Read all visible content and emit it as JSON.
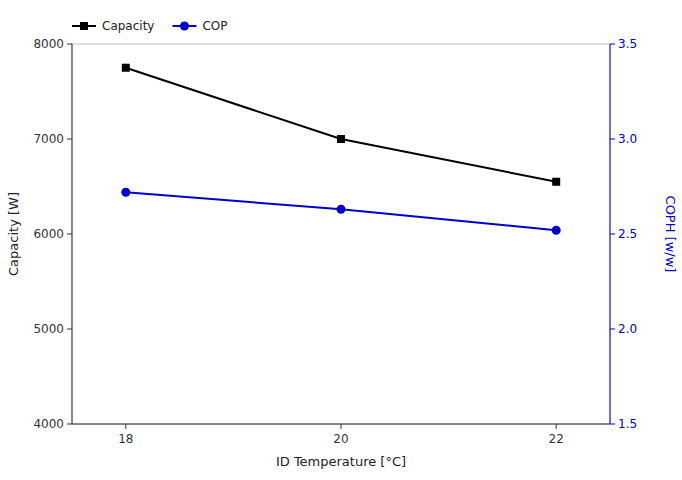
{
  "chart_data": {
    "type": "line",
    "xlabel": "ID Temperature [°C]",
    "ylabel": "Capacity [W]",
    "y2label": "COPH [w/w]",
    "x": [
      18,
      20,
      22
    ],
    "xlim": [
      17.5,
      22.5
    ],
    "xticks": [
      18,
      20,
      22
    ],
    "ylim": [
      4000,
      8000
    ],
    "yticks": [
      4000,
      5000,
      6000,
      7000,
      8000
    ],
    "y2lim": [
      1.5,
      3.5
    ],
    "y2ticks": [
      1.5,
      {
        "value": 2.0,
        "label": "2.0"
      },
      2.5,
      {
        "value": 3.0,
        "label": "3.0"
      },
      3.5
    ],
    "series": [
      {
        "name": "Capacity",
        "color": "#000000",
        "marker": "square",
        "values": [
          7750,
          7000,
          6550
        ]
      },
      {
        "name": "COP",
        "color": "#0000cc",
        "marker": "circle",
        "axis": "y2",
        "values": [
          2.72,
          2.63,
          2.52
        ]
      }
    ],
    "legend": "upper left",
    "grid": false
  }
}
